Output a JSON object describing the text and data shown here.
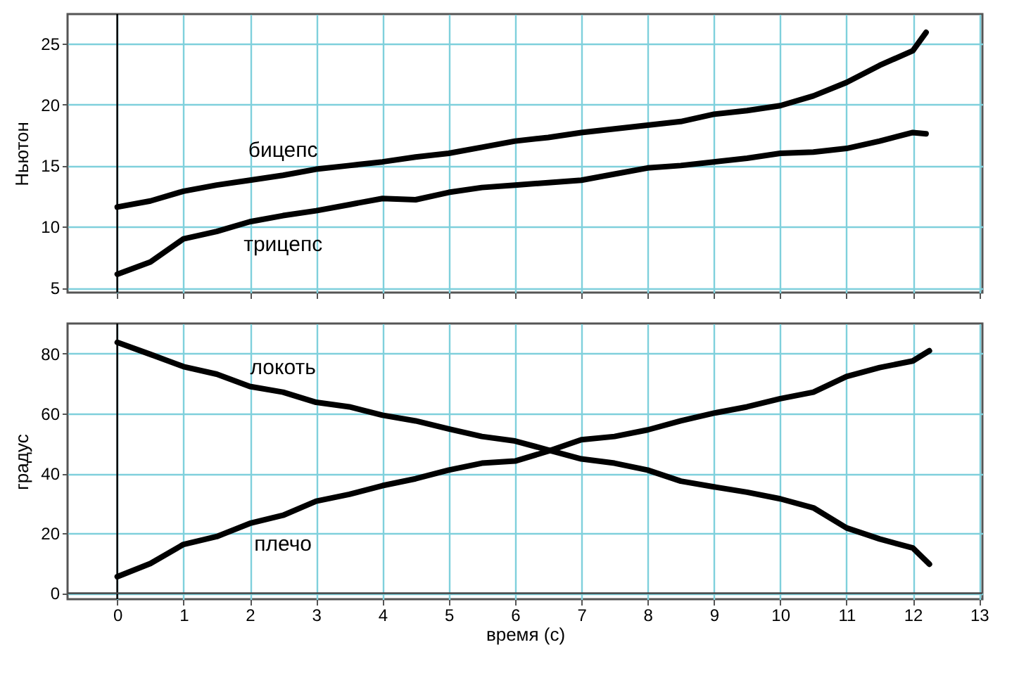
{
  "chart_data": [
    {
      "type": "line",
      "ylabel": "Ньютон",
      "x": [
        0,
        0.5,
        1,
        1.5,
        2,
        2.5,
        3,
        3.5,
        4,
        4.5,
        5,
        5.5,
        6,
        6.5,
        7,
        7.5,
        8,
        8.5,
        9,
        9.5,
        10,
        10.5,
        11,
        11.5,
        12,
        12.2
      ],
      "series": [
        {
          "name": "бицепс",
          "color": "#000000",
          "values": [
            11.6,
            12.1,
            12.9,
            13.4,
            13.8,
            14.2,
            14.7,
            15.0,
            15.3,
            15.7,
            16.0,
            16.5,
            17.0,
            17.3,
            17.7,
            18.0,
            18.3,
            18.6,
            19.2,
            19.5,
            19.9,
            20.7,
            21.8,
            23.2,
            24.4,
            25.9
          ]
        },
        {
          "name": "трицепс",
          "color": "#000000",
          "values": [
            6.1,
            7.1,
            9.0,
            9.6,
            10.4,
            10.9,
            11.3,
            11.8,
            12.3,
            12.2,
            12.8,
            13.2,
            13.4,
            13.6,
            13.8,
            14.3,
            14.8,
            15.0,
            15.3,
            15.6,
            16.0,
            16.1,
            16.4,
            17.0,
            17.7,
            17.6
          ]
        }
      ],
      "xlim": [
        -0.75,
        13.05
      ],
      "xticks": [
        0,
        1,
        2,
        3,
        4,
        5,
        6,
        7,
        8,
        9,
        10,
        11,
        12,
        13
      ],
      "ylim": [
        4.6,
        27.4
      ],
      "yticks": [
        5,
        10,
        15,
        20,
        25
      ],
      "ref_lines": [
        {
          "axis": "x",
          "value": 0,
          "color": "#000000"
        }
      ],
      "grid": true,
      "tick_labels": "y",
      "line_style": "solid"
    },
    {
      "type": "line",
      "xlabel": "время (с)",
      "ylabel": "градус",
      "x": [
        0,
        0.5,
        1,
        1.5,
        2,
        2.5,
        3,
        3.5,
        4,
        4.5,
        5,
        5.5,
        6,
        6.5,
        7,
        7.5,
        8,
        8.5,
        9,
        9.5,
        10,
        10.5,
        11,
        11.5,
        12,
        12.25
      ],
      "series": [
        {
          "name": "локоть",
          "color": "#000000",
          "values": [
            83.7,
            79.7,
            75.6,
            73.1,
            69.0,
            67.1,
            63.7,
            62.2,
            59.4,
            57.5,
            54.8,
            52.3,
            50.8,
            47.8,
            44.8,
            43.4,
            41.1,
            37.4,
            35.5,
            33.7,
            31.5,
            28.5,
            21.8,
            18.1,
            15.1,
            9.7
          ]
        },
        {
          "name": "плечо",
          "color": "#000000",
          "values": [
            5.5,
            9.9,
            16.3,
            18.9,
            23.3,
            26.0,
            30.7,
            33.0,
            35.9,
            38.2,
            41.1,
            43.4,
            44.1,
            47.4,
            51.2,
            52.3,
            54.5,
            57.5,
            60.1,
            62.2,
            64.9,
            67.1,
            72.3,
            75.3,
            77.5,
            80.9
          ]
        }
      ],
      "xlim": [
        -0.75,
        13.05
      ],
      "xticks": [
        0,
        1,
        2,
        3,
        4,
        5,
        6,
        7,
        8,
        9,
        10,
        11,
        12,
        13
      ],
      "ylim": [
        -2,
        90
      ],
      "yticks": [
        0,
        20,
        40,
        60,
        80
      ],
      "ref_lines": [
        {
          "axis": "x",
          "value": 0,
          "color": "#000000"
        },
        {
          "axis": "y",
          "value": 0,
          "color": "#444444"
        }
      ],
      "grid": true,
      "line_style": "solid"
    }
  ]
}
